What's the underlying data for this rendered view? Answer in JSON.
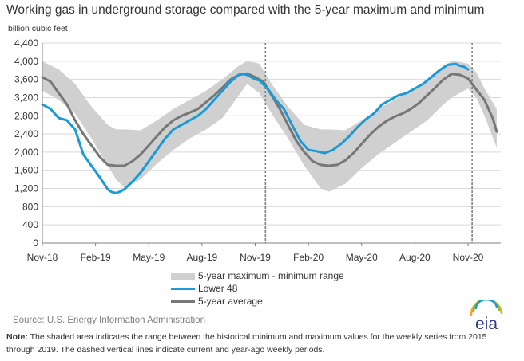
{
  "chart_data": {
    "type": "line",
    "title": "Working gas in underground storage compared with the 5-year maximum and minimum",
    "ylabel": "billion cubic feet",
    "xlabel": "",
    "ylim": [
      0,
      4400
    ],
    "yticks": [
      0,
      400,
      800,
      1200,
      1600,
      2000,
      2400,
      2800,
      3200,
      3600,
      4000,
      4400
    ],
    "ytick_labels": [
      "0",
      "400",
      "800",
      "1,200",
      "1,600",
      "2,000",
      "2,400",
      "2,800",
      "3,200",
      "3,600",
      "4,000",
      "4,400"
    ],
    "xlim": [
      0,
      112
    ],
    "xticks": [
      0,
      13,
      26,
      39,
      52,
      65,
      78,
      91,
      104
    ],
    "xtick_labels": [
      "Nov-18",
      "Feb-19",
      "May-19",
      "Aug-19",
      "Nov-19",
      "Feb-20",
      "May-20",
      "Aug-20",
      "Nov-20"
    ],
    "vlines": [
      54.5,
      105
    ],
    "grid": "horizontal",
    "legend_placement": "bottom",
    "band": {
      "name": "5-year maximum - minimum range",
      "x": [
        0,
        4,
        8,
        12,
        16,
        18,
        20,
        24,
        28,
        32,
        36,
        40,
        44,
        48,
        50,
        53,
        56,
        60,
        64,
        68,
        70,
        74,
        78,
        82,
        86,
        90,
        94,
        98,
        100,
        102,
        104,
        106,
        108,
        111
      ],
      "max": [
        4000,
        3820,
        3500,
        3000,
        2600,
        2500,
        2500,
        2480,
        2700,
        2950,
        3150,
        3350,
        3600,
        3900,
        4000,
        3950,
        3500,
        3000,
        2600,
        2500,
        2500,
        2480,
        2700,
        2950,
        3150,
        3350,
        3600,
        3900,
        4000,
        3980,
        3950,
        3750,
        3400,
        2950
      ],
      "min": [
        3350,
        3150,
        2850,
        2300,
        1700,
        1400,
        1220,
        1400,
        1750,
        2050,
        2300,
        2500,
        2750,
        3250,
        3500,
        3300,
        2850,
        2300,
        1700,
        1200,
        1130,
        1300,
        1650,
        1950,
        2200,
        2450,
        2700,
        3050,
        3200,
        3300,
        3400,
        3200,
        2800,
        2100
      ]
    },
    "series": [
      {
        "name": "Lower 48",
        "color": "#1b9ad6",
        "x": [
          0,
          2,
          4,
          6,
          8,
          10,
          12,
          14,
          16,
          17,
          18,
          19,
          20,
          22,
          24,
          26,
          28,
          30,
          32,
          34,
          36,
          38,
          40,
          42,
          44,
          46,
          48,
          49,
          50,
          52,
          53,
          55,
          57,
          59,
          61,
          63,
          65,
          67,
          69,
          71,
          73,
          75,
          77,
          79,
          81,
          83,
          85,
          87,
          89,
          91,
          93,
          95,
          97,
          99,
          101,
          102,
          103,
          104
        ],
        "values": [
          3050,
          2950,
          2750,
          2700,
          2500,
          1950,
          1700,
          1450,
          1180,
          1120,
          1100,
          1130,
          1180,
          1350,
          1550,
          1800,
          2050,
          2300,
          2500,
          2600,
          2700,
          2800,
          2950,
          3150,
          3350,
          3550,
          3700,
          3720,
          3700,
          3600,
          3580,
          3400,
          3150,
          2950,
          2600,
          2250,
          2050,
          2020,
          1980,
          2050,
          2180,
          2350,
          2550,
          2720,
          2850,
          3050,
          3150,
          3250,
          3300,
          3400,
          3500,
          3650,
          3800,
          3920,
          3940,
          3900,
          3880,
          3820
        ]
      },
      {
        "name": "5-year average",
        "color": "#777777",
        "x": [
          0,
          2,
          4,
          6,
          8,
          10,
          12,
          14,
          16,
          18,
          20,
          22,
          24,
          26,
          28,
          30,
          32,
          34,
          36,
          38,
          40,
          42,
          44,
          46,
          48,
          50,
          52,
          54,
          56,
          58,
          60,
          62,
          64,
          66,
          68,
          70,
          72,
          74,
          76,
          78,
          80,
          82,
          84,
          86,
          88,
          90,
          92,
          94,
          96,
          98,
          100,
          102,
          104,
          106,
          108,
          110,
          111
        ],
        "values": [
          3650,
          3550,
          3300,
          3050,
          2700,
          2400,
          2150,
          1900,
          1720,
          1700,
          1700,
          1800,
          1950,
          2150,
          2350,
          2550,
          2700,
          2800,
          2870,
          2950,
          3100,
          3250,
          3420,
          3600,
          3700,
          3730,
          3650,
          3550,
          3250,
          2950,
          2600,
          2250,
          2000,
          1800,
          1720,
          1700,
          1720,
          1820,
          1980,
          2180,
          2380,
          2550,
          2680,
          2780,
          2850,
          2950,
          3080,
          3250,
          3420,
          3600,
          3720,
          3700,
          3620,
          3380,
          3150,
          2750,
          2450
        ]
      }
    ]
  },
  "legend": {
    "band_label": "5-year maximum - minimum range",
    "lower48_label": "Lower 48",
    "avg_label": "5-year average",
    "band_color": "#d0d0d0",
    "lower48_color": "#1b9ad6",
    "avg_color": "#777777"
  },
  "source": "Source:  U.S. Energy Information Administration",
  "note_label": "Note:",
  "note_text": " The shaded area indicates the range between the historical minimum and maximum values for the weekly series from 2015 through 2019. The dashed vertical lines indicate current and year-ago weekly periods.",
  "logo": {
    "text": "eia",
    "icon": "eia-logo-icon"
  }
}
